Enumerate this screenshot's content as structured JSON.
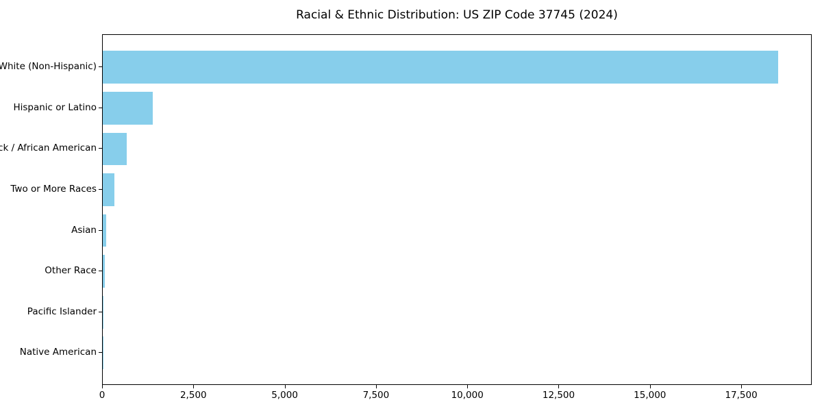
{
  "chart_data": {
    "type": "bar",
    "orientation": "horizontal",
    "title": "Racial & Ethnic Distribution: US ZIP Code 37745 (2024)",
    "categories": [
      "White (Non-Hispanic)",
      "Hispanic or Latino",
      "Black / African American",
      "Two or More Races",
      "Asian",
      "Other Race",
      "Pacific Islander",
      "Native American"
    ],
    "values": [
      18500,
      1375,
      660,
      320,
      90,
      60,
      10,
      5
    ],
    "title_text": "",
    "xlabel": "",
    "ylabel": "",
    "xlim": [
      0,
      19430
    ],
    "xticks": [
      0,
      2500,
      5000,
      7500,
      10000,
      12500,
      15000,
      17500
    ],
    "bar_color": "#87CEEB",
    "axis_color": "#000000",
    "text_color": "#000000",
    "grid": false,
    "legend": null
  }
}
